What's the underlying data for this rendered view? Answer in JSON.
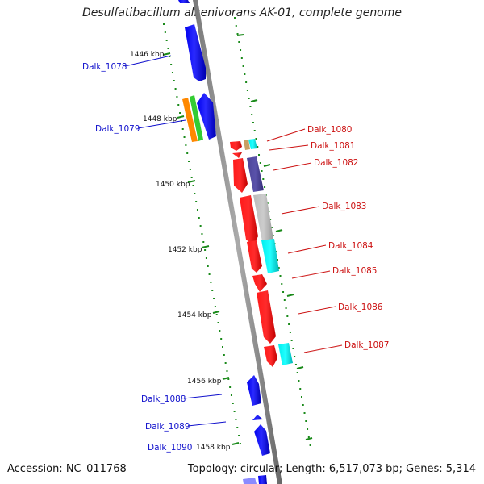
{
  "title": "Desulfatibacillum alkenivorans AK-01, complete genome",
  "footer": {
    "accession": "Accession: NC_011768",
    "summary": "Topology: circular; Length: 6,517,073 bp; Genes: 5,314"
  },
  "colors": {
    "forward_label": "#1010cc",
    "reverse_label": "#cc1111",
    "tick": "#1a8a1a",
    "backbone": "#888888"
  },
  "kbp_markers": [
    {
      "label": "1446 kbp"
    },
    {
      "label": "1448 kbp"
    },
    {
      "label": "1450 kbp"
    },
    {
      "label": "1452 kbp"
    },
    {
      "label": "1454 kbp"
    },
    {
      "label": "1456 kbp"
    },
    {
      "label": "1458 kbp"
    }
  ],
  "genes": [
    {
      "label": "Dalk_1078",
      "strand": "forward"
    },
    {
      "label": "Dalk_1079",
      "strand": "forward"
    },
    {
      "label": "Dalk_1080",
      "strand": "reverse"
    },
    {
      "label": "Dalk_1081",
      "strand": "reverse"
    },
    {
      "label": "Dalk_1082",
      "strand": "reverse"
    },
    {
      "label": "Dalk_1083",
      "strand": "reverse"
    },
    {
      "label": "Dalk_1084",
      "strand": "reverse"
    },
    {
      "label": "Dalk_1085",
      "strand": "reverse"
    },
    {
      "label": "Dalk_1086",
      "strand": "reverse"
    },
    {
      "label": "Dalk_1087",
      "strand": "reverse"
    },
    {
      "label": "Dalk_1088",
      "strand": "forward"
    },
    {
      "label": "Dalk_1089",
      "strand": "forward"
    },
    {
      "label": "Dalk_1090",
      "strand": "forward"
    }
  ]
}
